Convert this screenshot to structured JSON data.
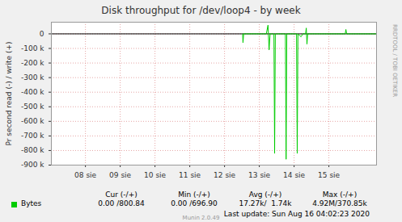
{
  "chart_data": {
    "type": "line",
    "title": "Disk throughput for /dev/loop4 - by week",
    "y_label": "Pr second read (-) / write (+)",
    "x": [
      12.52,
      12.53,
      12.55,
      13.2,
      13.25,
      13.28,
      13.31,
      13.42,
      13.44,
      13.46,
      13.75,
      13.77,
      13.79,
      14.07,
      14.09,
      14.11,
      14.2,
      14.25,
      14.33,
      14.35,
      14.37,
      14.39,
      15.47,
      15.49,
      15.51,
      16.35
    ],
    "series": [
      {
        "name": "Bytes",
        "color": "#00cc00",
        "values": [
          0,
          -60000,
          0,
          0,
          60000,
          -110000,
          0,
          0,
          -820000,
          0,
          0,
          -860000,
          0,
          0,
          -820000,
          0,
          -20000,
          0,
          0,
          40000,
          -70000,
          0,
          0,
          30000,
          0,
          0
        ]
      }
    ],
    "xlim": [
      7.02,
      16.37
    ],
    "xticks": [
      {
        "value": 8,
        "label": "08 sie"
      },
      {
        "value": 9,
        "label": "09 sie"
      },
      {
        "value": 10,
        "label": "10 sie"
      },
      {
        "value": 11,
        "label": "11 sie"
      },
      {
        "value": 12,
        "label": "12 sie"
      },
      {
        "value": 13,
        "label": "13 sie"
      },
      {
        "value": 14,
        "label": "14 sie"
      },
      {
        "value": 15,
        "label": "15 sie"
      }
    ],
    "ylim": [
      -900000,
      80000
    ],
    "yticks": [
      0,
      {
        "value": -100000,
        "label": "-100 k"
      },
      {
        "value": -200000,
        "label": "-200 k"
      },
      {
        "value": -300000,
        "label": "-300 k"
      },
      {
        "value": -400000,
        "label": "-400 k"
      },
      {
        "value": -500000,
        "label": "-500 k"
      },
      {
        "value": -600000,
        "label": "-600 k"
      },
      {
        "value": -700000,
        "label": "-700 k"
      },
      {
        "value": -800000,
        "label": "-800 k"
      },
      {
        "value": -900000,
        "label": "-900 k"
      }
    ],
    "grid": true,
    "stats_columns": [
      "Cur (-/+)",
      "Min (-/+)",
      "Avg (-/+)",
      "Max (-/+)"
    ],
    "stats_values": [
      "0.00 /800.84",
      "0.00 /696.90",
      "17.27k/  1.74k",
      "4.92M/370.85k"
    ],
    "footer": "Last update: Sun Aug 16 04:02:23 2020",
    "credit": "Munin 2.0.49",
    "side_text": "RRDTOOL / TOBI OETIKER"
  }
}
